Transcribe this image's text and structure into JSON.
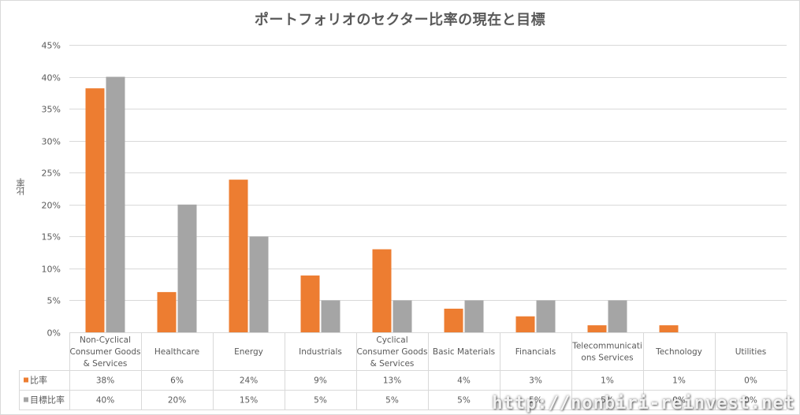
{
  "chart_data": {
    "type": "bar",
    "title": "ポートフォリオのセクター比率の現在と目標",
    "ylabel": "比率",
    "xlabel": "",
    "ylim": [
      0,
      45
    ],
    "yticks": [
      "0%",
      "5%",
      "10%",
      "15%",
      "20%",
      "25%",
      "30%",
      "35%",
      "40%",
      "45%"
    ],
    "grid": true,
    "legend": "data-table",
    "categories": [
      [
        "Non-Cyclical",
        "Consumer Goods",
        "& Services"
      ],
      [
        "Healthcare"
      ],
      [
        "Energy"
      ],
      [
        "Industrials"
      ],
      [
        "Cyclical",
        "Consumer Goods",
        "& Services"
      ],
      [
        "Basic Materials"
      ],
      [
        "Financials"
      ],
      [
        "Telecommunicati",
        "ons Services"
      ],
      [
        "Technology"
      ],
      [
        "Utilities"
      ]
    ],
    "series": [
      {
        "name": "比率",
        "color": "#ed7d31",
        "values": [
          38.2,
          6.3,
          23.9,
          8.9,
          13.0,
          3.7,
          2.5,
          1.1,
          1.1,
          0
        ],
        "labels": [
          "38%",
          "6%",
          "24%",
          "9%",
          "13%",
          "4%",
          "3%",
          "1%",
          "1%",
          "0%"
        ]
      },
      {
        "name": "目標比率",
        "color": "#a5a5a5",
        "values": [
          40,
          20,
          15,
          5,
          5,
          5,
          5,
          5,
          0,
          0
        ],
        "labels": [
          "40%",
          "20%",
          "15%",
          "5%",
          "5%",
          "5%",
          "5%",
          "5%",
          "0%",
          "0%"
        ]
      }
    ]
  },
  "watermark": "http://nonbiri-reinvest.net"
}
